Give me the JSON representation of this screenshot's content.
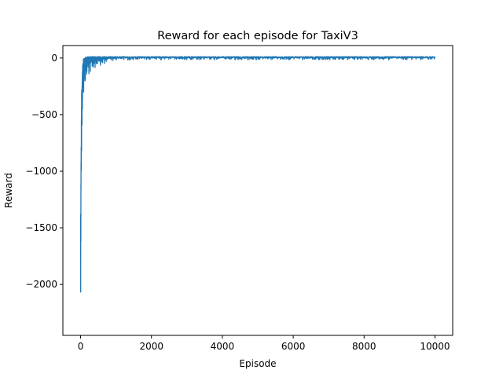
{
  "chart_data": {
    "type": "line",
    "title": "Reward for each episode for TaxiV3",
    "xlabel": "Episode",
    "ylabel": "Reward",
    "xlim": [
      -500,
      10500
    ],
    "ylim": [
      -2450,
      110
    ],
    "x_ticks": [
      0,
      2000,
      4000,
      6000,
      8000,
      10000
    ],
    "x_tick_labels": [
      "0",
      "2000",
      "4000",
      "6000",
      "8000",
      "10000"
    ],
    "y_ticks": [
      0,
      -500,
      -1000,
      -1500,
      -2000
    ],
    "y_tick_labels": [
      "0",
      "−500",
      "−1000",
      "−1500",
      "−2000"
    ],
    "grid": false,
    "legend": "none",
    "series_color": "#1f77b4",
    "series": [
      {
        "x": [
          0,
          5,
          10,
          15,
          20,
          25,
          30,
          40,
          50,
          60,
          70,
          80,
          100,
          120,
          150,
          200,
          250,
          300,
          400,
          500,
          600,
          800,
          1000,
          1500,
          2000,
          3000,
          4000,
          5000,
          6000,
          7000,
          8000,
          9000,
          10000
        ],
        "y_low": [
          -2380,
          -2300,
          -1850,
          -1400,
          -1150,
          -1000,
          -820,
          -640,
          -520,
          -420,
          -380,
          -330,
          -280,
          -240,
          -200,
          -160,
          -135,
          -115,
          -95,
          -80,
          -60,
          -35,
          -25,
          -18,
          -16,
          -16,
          -18,
          -16,
          -15,
          -17,
          -16,
          -17,
          -15
        ],
        "y_high": [
          -1400,
          -1300,
          -1000,
          -800,
          -560,
          -420,
          -300,
          -200,
          -120,
          -60,
          -30,
          -10,
          0,
          5,
          8,
          10,
          12,
          12,
          12,
          12,
          12,
          12,
          12,
          12,
          12,
          12,
          12,
          12,
          12,
          12,
          12,
          12,
          12
        ]
      }
    ]
  }
}
